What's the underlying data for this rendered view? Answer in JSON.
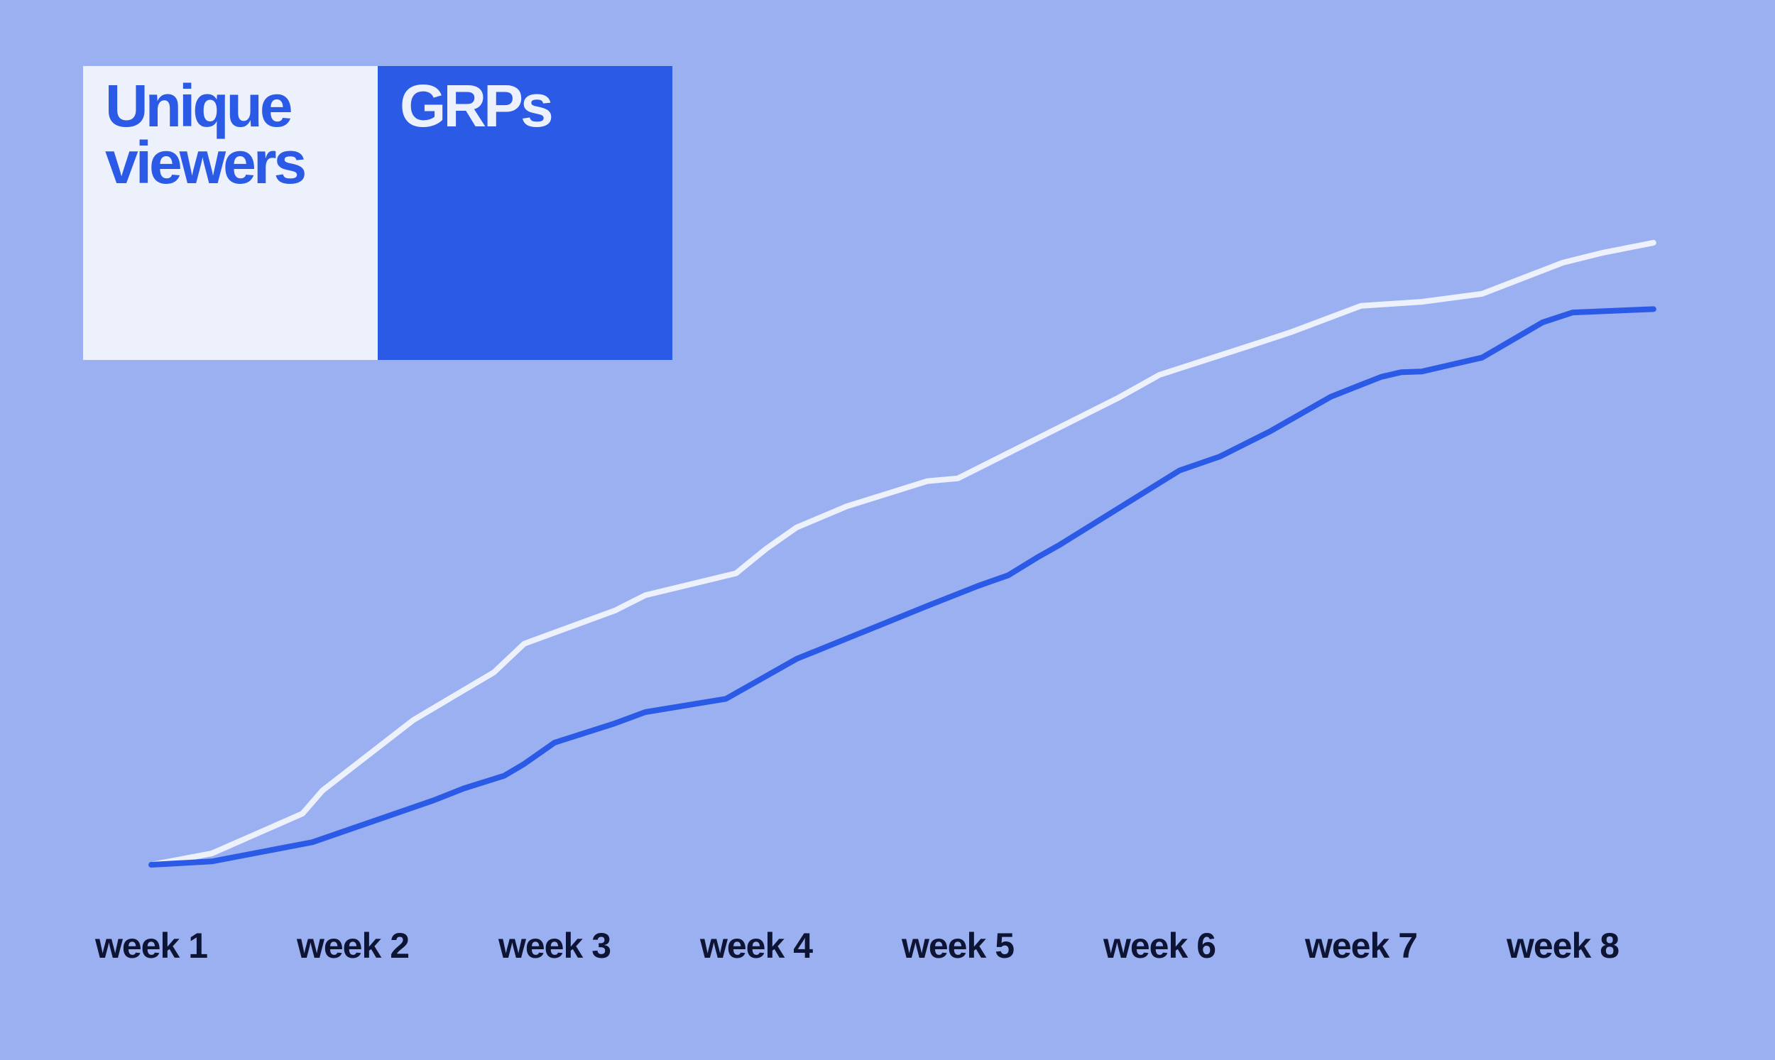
{
  "colors": {
    "background": "#9BB0F1",
    "unique_viewers": "#EDF1FC",
    "grps": "#2B5AE6",
    "tick_text": "#0E1433"
  },
  "legend": [
    {
      "label": "Unique\nviewers",
      "box_color": "#EDF1FC",
      "text_color": "#2B5AE6"
    },
    {
      "label": "GRPs",
      "box_color": "#2B5AE6",
      "text_color": "#EDF1FC"
    }
  ],
  "chart_data": {
    "type": "line",
    "title": "",
    "xlabel": "",
    "ylabel": "",
    "grid": false,
    "legend_position": "top-left",
    "x_tick_labels": [
      "week 1",
      "week 2",
      "week 3",
      "week 4",
      "week 5",
      "week 6",
      "week 7",
      "week 8"
    ],
    "xlim": [
      1,
      8.5
    ],
    "ylim": [
      0,
      100
    ],
    "series": [
      {
        "name": "Unique viewers",
        "color": "#EDF1FC",
        "x": [
          1.0,
          1.3,
          1.75,
          1.85,
          2.3,
          2.6,
          2.7,
          2.85,
          3.3,
          3.45,
          3.9,
          4.05,
          4.2,
          4.45,
          4.85,
          5.0,
          5.8,
          6.0,
          6.5,
          6.65,
          7.0,
          7.3,
          7.6,
          8.0,
          8.2,
          8.45
        ],
        "y": [
          0.0,
          1.7,
          7.7,
          11.2,
          21.8,
          27.2,
          29.0,
          33.3,
          38.3,
          40.6,
          43.9,
          47.6,
          50.8,
          54.0,
          57.8,
          58.2,
          70.4,
          73.8,
          78.7,
          80.2,
          84.2,
          84.8,
          86.0,
          90.7,
          92.2,
          93.7
        ]
      },
      {
        "name": "GRPs",
        "color": "#2B5AE6",
        "x": [
          1.0,
          1.3,
          1.8,
          2.4,
          2.55,
          2.75,
          2.85,
          3.0,
          3.3,
          3.45,
          3.85,
          4.2,
          4.5,
          4.85,
          5.1,
          5.25,
          5.4,
          5.5,
          6.1,
          6.3,
          6.55,
          6.85,
          7.1,
          7.2,
          7.3,
          7.6,
          7.9,
          8.05,
          8.45
        ],
        "y": [
          0.0,
          0.5,
          3.4,
          9.7,
          11.5,
          13.4,
          15.2,
          18.4,
          21.3,
          23.0,
          25.0,
          31.0,
          34.7,
          39.0,
          42.0,
          43.6,
          46.4,
          48.1,
          59.4,
          61.5,
          65.3,
          70.5,
          73.5,
          74.2,
          74.3,
          76.4,
          81.7,
          83.2,
          83.7
        ]
      }
    ]
  }
}
